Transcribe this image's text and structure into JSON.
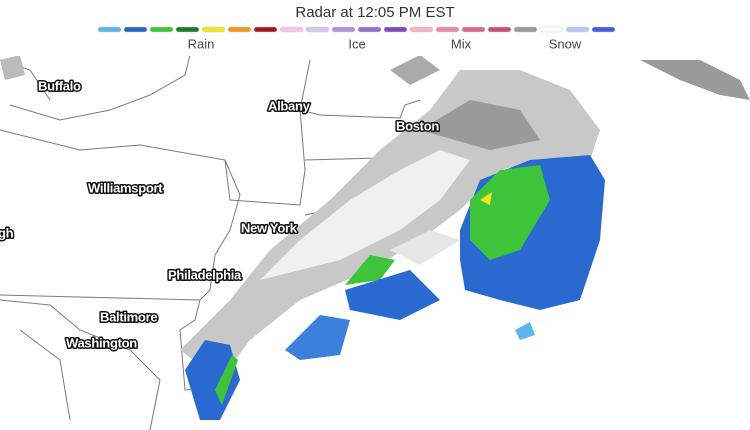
{
  "header": {
    "title": "Radar at 12:05 PM EST"
  },
  "legend": [
    {
      "label": "Rain",
      "colors": [
        "#5bb6ea",
        "#1f68c4",
        "#3ec43a",
        "#1c7a2c",
        "#f4e424",
        "#f09526",
        "#a0181c",
        "#f2c6e8"
      ]
    },
    {
      "label": "Ice",
      "colors": [
        "#d6c6f0",
        "#b48fe0",
        "#9a6cd0",
        "#7a4cb4"
      ]
    },
    {
      "label": "Mix",
      "colors": [
        "#f4b4c4",
        "#e88aa8",
        "#d86890",
        "#c45078"
      ]
    },
    {
      "label": "Snow",
      "colors": [
        "#9a9a9a",
        "#ffffff",
        "#b8c8f4",
        "#4060d8"
      ]
    }
  ],
  "cities": [
    "Buffalo",
    "Albany",
    "Boston",
    "Williamsport",
    "New York",
    "gh",
    "Philadelphia",
    "Baltimore",
    "Washington"
  ]
}
